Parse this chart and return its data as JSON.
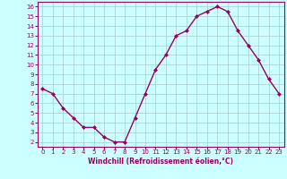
{
  "x": [
    0,
    1,
    2,
    3,
    4,
    5,
    6,
    7,
    8,
    9,
    10,
    11,
    12,
    13,
    14,
    15,
    16,
    17,
    18,
    19,
    20,
    21,
    22,
    23
  ],
  "y": [
    7.5,
    7.0,
    5.5,
    4.5,
    3.5,
    3.5,
    2.5,
    2.0,
    2.0,
    4.5,
    7.0,
    9.5,
    11.0,
    13.0,
    13.5,
    15.0,
    15.5,
    16.0,
    15.5,
    13.5,
    12.0,
    10.5,
    8.5,
    7.0
  ],
  "line_color": "#990066",
  "marker": "D",
  "markersize": 2,
  "linewidth": 1.0,
  "bg_color": "#ccffff",
  "grid_color": "#aacccc",
  "tick_color": "#990066",
  "label_color": "#990066",
  "xlabel": "Windchill (Refroidissement éolien,°C)",
  "xlim": [
    -0.5,
    23.5
  ],
  "ylim": [
    1.5,
    16.5
  ],
  "yticks": [
    2,
    3,
    4,
    5,
    6,
    7,
    8,
    9,
    10,
    11,
    12,
    13,
    14,
    15,
    16
  ],
  "xticks": [
    0,
    1,
    2,
    3,
    4,
    5,
    6,
    7,
    8,
    9,
    10,
    11,
    12,
    13,
    14,
    15,
    16,
    17,
    18,
    19,
    20,
    21,
    22,
    23
  ],
  "tick_fontsize": 5.0,
  "xlabel_fontsize": 5.5
}
